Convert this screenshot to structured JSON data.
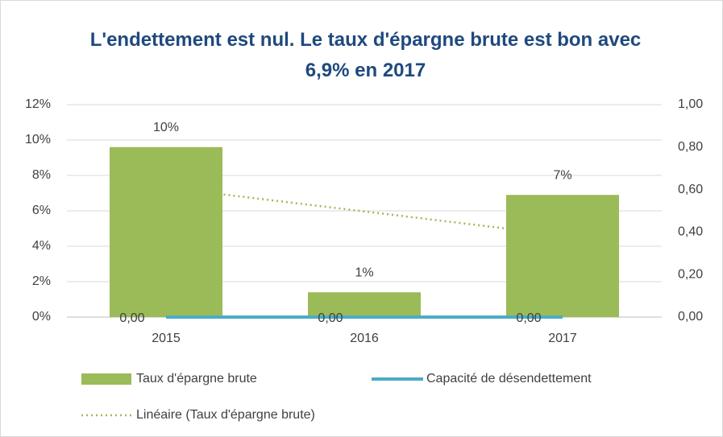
{
  "chart_data": {
    "type": "bar-line",
    "title": "L'endettement est nul. Le taux d'épargne brute est bon avec 6,9% en 2017",
    "categories": [
      "2015",
      "2016",
      "2017"
    ],
    "series": [
      {
        "name": "Taux d'épargne brute",
        "type": "bar",
        "color": "#9bbb59",
        "values": [
          9.6,
          1.4,
          6.9
        ],
        "value_labels": [
          "10%",
          "1%",
          "7%"
        ]
      },
      {
        "name": "Capacité de désendettement",
        "type": "line",
        "axis": "y2",
        "color": "#4bacc6",
        "values": [
          0,
          0,
          0
        ],
        "value_labels": [
          "0,00",
          "0,00",
          "0,00"
        ]
      }
    ],
    "trendline": {
      "name": "Linéaire (Taux d'épargne brute)",
      "kind": "linear",
      "series": 0,
      "color": "#9bbb59"
    },
    "ylim": [
      0,
      12
    ],
    "yticks": [
      {
        "value": 0,
        "label": "0%"
      },
      {
        "value": 2,
        "label": "2%"
      },
      {
        "value": 4,
        "label": "4%"
      },
      {
        "value": 6,
        "label": "6%"
      },
      {
        "value": 8,
        "label": "8%"
      },
      {
        "value": 10,
        "label": "10%"
      },
      {
        "value": 12,
        "label": "12%"
      }
    ],
    "y2lim": [
      0,
      1
    ],
    "y2ticks": [
      {
        "value": 0,
        "label": "0,00"
      },
      {
        "value": 0.2,
        "label": "0,20"
      },
      {
        "value": 0.4,
        "label": "0,40"
      },
      {
        "value": 0.6,
        "label": "0,60"
      },
      {
        "value": 0.8,
        "label": "0,80"
      },
      {
        "value": 1,
        "label": "1,00"
      }
    ],
    "grid": true,
    "legend": "bottom"
  }
}
